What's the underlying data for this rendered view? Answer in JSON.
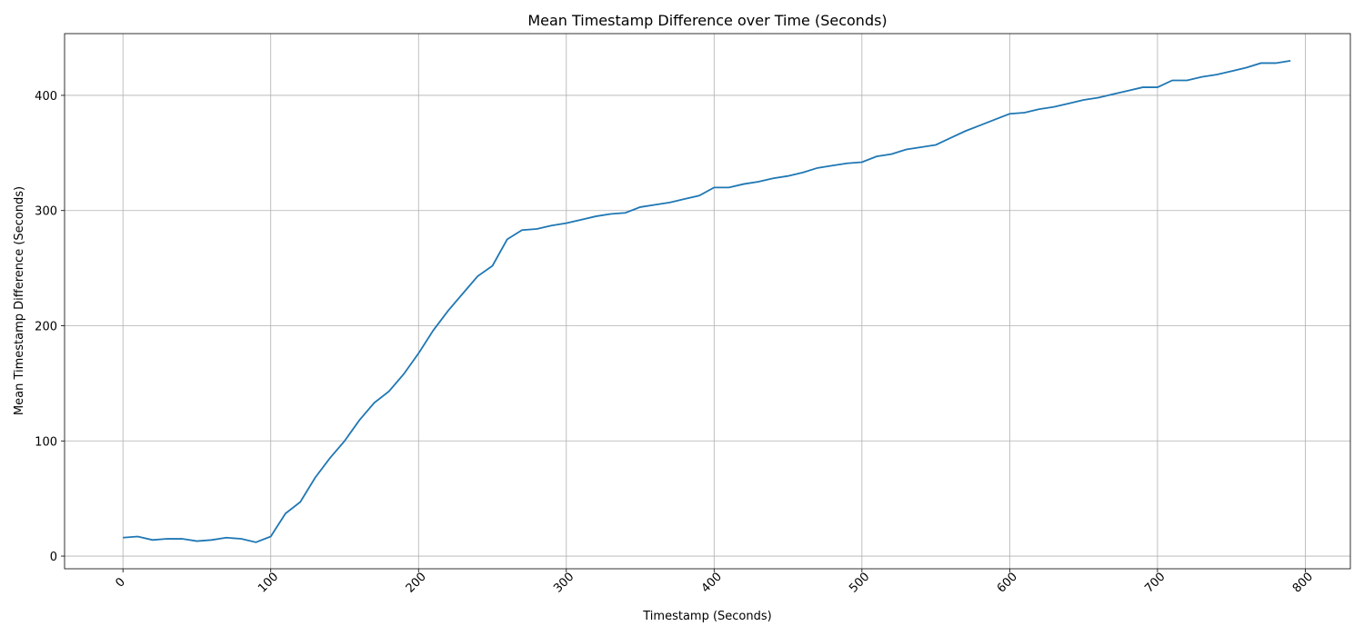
{
  "chart_data": {
    "type": "line",
    "title": "Mean Timestamp Difference over Time (Seconds)",
    "x_label": "Timestamp (Seconds)",
    "y_label": "Mean Timestamp Difference (Seconds)",
    "x": [
      0,
      10,
      20,
      30,
      40,
      50,
      60,
      70,
      80,
      90,
      100,
      110,
      120,
      130,
      140,
      150,
      160,
      170,
      180,
      190,
      200,
      210,
      220,
      230,
      240,
      250,
      260,
      270,
      280,
      290,
      300,
      310,
      320,
      330,
      340,
      350,
      360,
      370,
      380,
      390,
      400,
      410,
      420,
      430,
      440,
      450,
      460,
      470,
      480,
      490,
      500,
      510,
      520,
      530,
      540,
      550,
      560,
      570,
      580,
      590,
      600,
      610,
      620,
      630,
      640,
      650,
      660,
      670,
      680,
      690,
      700,
      710,
      720,
      730,
      740,
      750,
      760,
      770,
      780,
      790
    ],
    "series": [
      {
        "name": "Mean Timestamp Difference",
        "color": "#1f77b4",
        "values": [
          16,
          17,
          14,
          15,
          15,
          13,
          14,
          16,
          15,
          12,
          17,
          37,
          47,
          68,
          85,
          100,
          118,
          133,
          143,
          158,
          176,
          196,
          213,
          228,
          243,
          252,
          275,
          283,
          284,
          287,
          289,
          292,
          295,
          297,
          298,
          303,
          305,
          307,
          310,
          313,
          320,
          320,
          323,
          325,
          328,
          330,
          333,
          337,
          339,
          341,
          342,
          347,
          349,
          353,
          355,
          357,
          363,
          369,
          374,
          379,
          384,
          385,
          388,
          390,
          393,
          396,
          398,
          401,
          404,
          407,
          407,
          413,
          413,
          416,
          418,
          421,
          424,
          428,
          428,
          430
        ]
      }
    ],
    "xlim": [
      -39.5,
      830.5
    ],
    "ylim": [
      -11,
      453.6
    ],
    "xticks": [
      0,
      100,
      200,
      300,
      400,
      500,
      600,
      700,
      800
    ],
    "yticks": [
      0,
      100,
      200,
      300,
      400
    ],
    "grid": true
  }
}
